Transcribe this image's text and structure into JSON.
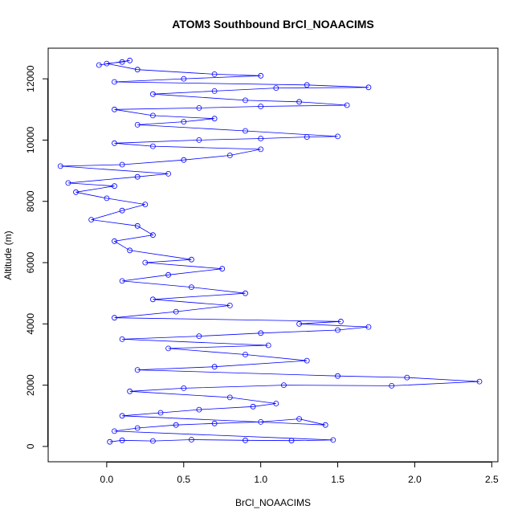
{
  "chart_data": {
    "type": "scatter",
    "title": "ATOM3 Southbound BrCl_NOAACIMS",
    "xlabel": "BrCl_NOAACIMS",
    "ylabel": "Altitude (m)",
    "xlim": [
      -0.38,
      2.54
    ],
    "ylim": [
      -500,
      13000
    ],
    "x_ticks": [
      0.0,
      0.5,
      1.0,
      1.5,
      2.0,
      2.5
    ],
    "x_tick_labels": [
      "0.0",
      "0.5",
      "1.0",
      "1.5",
      "2.0",
      "2.5"
    ],
    "y_ticks": [
      0,
      2000,
      4000,
      6000,
      8000,
      10000,
      12000
    ],
    "y_tick_labels": [
      "0",
      "2000",
      "4000",
      "6000",
      "8000",
      "10000",
      "12000"
    ],
    "grid": false,
    "legend": "none",
    "marker": "open-circle",
    "connect_points": true,
    "series_color": "#0000ff",
    "series": [
      {
        "values_note_free": true,
        "points": [
          [
            0.02,
            150
          ],
          [
            0.1,
            200
          ],
          [
            0.3,
            180
          ],
          [
            0.55,
            220
          ],
          [
            0.9,
            200
          ],
          [
            1.2,
            190
          ],
          [
            1.47,
            210
          ],
          [
            0.05,
            500
          ],
          [
            0.2,
            600
          ],
          [
            0.45,
            700
          ],
          [
            0.7,
            750
          ],
          [
            1.0,
            800
          ],
          [
            1.25,
            900
          ],
          [
            1.42,
            700
          ],
          [
            0.1,
            1000
          ],
          [
            0.35,
            1100
          ],
          [
            0.6,
            1200
          ],
          [
            0.95,
            1300
          ],
          [
            1.1,
            1400
          ],
          [
            0.8,
            1600
          ],
          [
            0.15,
            1800
          ],
          [
            0.5,
            1900
          ],
          [
            1.15,
            2000
          ],
          [
            1.85,
            1980
          ],
          [
            2.42,
            2120
          ],
          [
            1.95,
            2250
          ],
          [
            1.5,
            2300
          ],
          [
            0.2,
            2500
          ],
          [
            0.7,
            2600
          ],
          [
            1.3,
            2800
          ],
          [
            0.9,
            3000
          ],
          [
            0.4,
            3200
          ],
          [
            1.05,
            3300
          ],
          [
            0.1,
            3500
          ],
          [
            0.6,
            3600
          ],
          [
            1.0,
            3700
          ],
          [
            1.5,
            3800
          ],
          [
            1.7,
            3900
          ],
          [
            1.25,
            4000
          ],
          [
            1.52,
            4080
          ],
          [
            0.05,
            4200
          ],
          [
            0.45,
            4400
          ],
          [
            0.8,
            4600
          ],
          [
            0.3,
            4800
          ],
          [
            0.9,
            5000
          ],
          [
            0.55,
            5200
          ],
          [
            0.1,
            5400
          ],
          [
            0.4,
            5600
          ],
          [
            0.75,
            5800
          ],
          [
            0.25,
            6000
          ],
          [
            0.55,
            6100
          ],
          [
            0.15,
            6400
          ],
          [
            0.05,
            6700
          ],
          [
            0.3,
            6900
          ],
          [
            0.2,
            7200
          ],
          [
            -0.1,
            7400
          ],
          [
            0.1,
            7700
          ],
          [
            0.25,
            7900
          ],
          [
            0.0,
            8100
          ],
          [
            -0.2,
            8300
          ],
          [
            0.05,
            8500
          ],
          [
            -0.25,
            8600
          ],
          [
            0.2,
            8800
          ],
          [
            0.4,
            8900
          ],
          [
            -0.3,
            9150
          ],
          [
            0.1,
            9200
          ],
          [
            0.5,
            9350
          ],
          [
            0.8,
            9500
          ],
          [
            1.0,
            9700
          ],
          [
            0.3,
            9800
          ],
          [
            0.05,
            9900
          ],
          [
            0.6,
            10000
          ],
          [
            1.0,
            10050
          ],
          [
            1.3,
            10100
          ],
          [
            1.5,
            10120
          ],
          [
            0.9,
            10300
          ],
          [
            0.2,
            10500
          ],
          [
            0.5,
            10600
          ],
          [
            0.7,
            10700
          ],
          [
            0.3,
            10800
          ],
          [
            0.05,
            11000
          ],
          [
            0.6,
            11050
          ],
          [
            1.0,
            11100
          ],
          [
            1.56,
            11140
          ],
          [
            1.25,
            11250
          ],
          [
            0.9,
            11300
          ],
          [
            0.3,
            11500
          ],
          [
            0.7,
            11600
          ],
          [
            1.1,
            11700
          ],
          [
            1.7,
            11720
          ],
          [
            1.3,
            11800
          ],
          [
            0.05,
            11900
          ],
          [
            0.5,
            12000
          ],
          [
            1.0,
            12100
          ],
          [
            0.7,
            12150
          ],
          [
            0.2,
            12300
          ],
          [
            0.0,
            12500
          ],
          [
            0.1,
            12550
          ],
          [
            0.15,
            12600
          ],
          [
            -0.05,
            12450
          ]
        ]
      }
    ]
  }
}
